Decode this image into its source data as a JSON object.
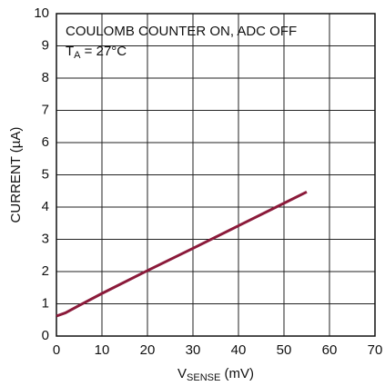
{
  "chart_data": {
    "type": "line",
    "annotations": [
      [
        "COULOMB COUNTER ON, ADC OFF"
      ],
      [
        "T",
        "A",
        " = 27°C"
      ]
    ],
    "x_label": [
      "V",
      "SENSE",
      " (mV)"
    ],
    "y_label": "CURRENT (µA)",
    "x": [
      0,
      2,
      5,
      10,
      20,
      30,
      40,
      50,
      55
    ],
    "values": [
      0.62,
      0.72,
      0.95,
      1.32,
      2.03,
      2.72,
      3.42,
      4.12,
      4.47
    ],
    "color": "#8b1a3a",
    "xlim": [
      0,
      70
    ],
    "xticks": [
      0,
      10,
      20,
      30,
      40,
      50,
      60,
      70
    ],
    "ylim": [
      0,
      10
    ],
    "yticks": [
      0,
      1,
      2,
      3,
      4,
      5,
      6,
      7,
      8,
      9,
      10
    ],
    "grid": true
  }
}
